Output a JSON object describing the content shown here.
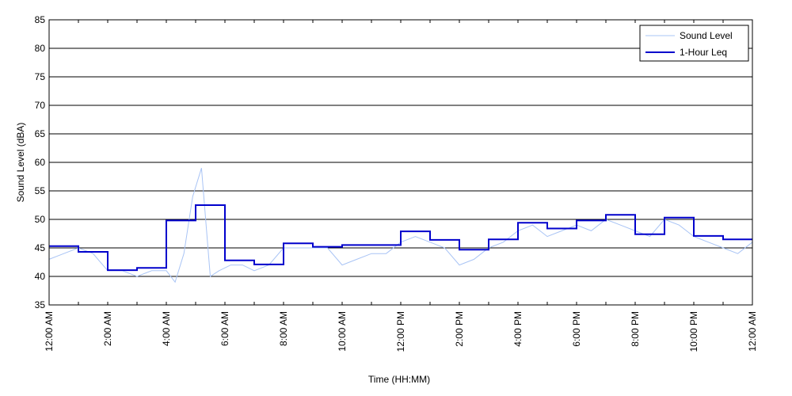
{
  "chart_data": {
    "type": "line",
    "xlabel": "Time (HH:MM)",
    "ylabel": "Sound Level (dBA)",
    "ylim": [
      35,
      85
    ],
    "y_ticks": [
      35,
      40,
      45,
      50,
      55,
      60,
      65,
      70,
      75,
      80,
      85
    ],
    "xlim_hours": [
      0,
      24
    ],
    "x_ticks": [
      {
        "hour": 0,
        "label": "12:00 AM"
      },
      {
        "hour": 2,
        "label": "2:00 AM"
      },
      {
        "hour": 4,
        "label": "4:00 AM"
      },
      {
        "hour": 6,
        "label": "6:00 AM"
      },
      {
        "hour": 8,
        "label": "8:00 AM"
      },
      {
        "hour": 10,
        "label": "10:00 AM"
      },
      {
        "hour": 12,
        "label": "12:00 PM"
      },
      {
        "hour": 14,
        "label": "2:00 PM"
      },
      {
        "hour": 16,
        "label": "4:00 PM"
      },
      {
        "hour": 18,
        "label": "6:00 PM"
      },
      {
        "hour": 20,
        "label": "8:00 PM"
      },
      {
        "hour": 22,
        "label": "10:00 PM"
      },
      {
        "hour": 24,
        "label": "12:00 AM"
      }
    ],
    "grid": "horizontal",
    "legend_position": "top-right",
    "series": [
      {
        "name": "Sound Level",
        "color": "#a9c4f5",
        "style": "thin-line",
        "x_hours": [
          0,
          0.5,
          1,
          1.5,
          2,
          2.5,
          3,
          3.5,
          4,
          4.3,
          4.6,
          4.9,
          5.2,
          5.5,
          5.8,
          6.2,
          6.6,
          7,
          7.5,
          8,
          8.5,
          9,
          9.5,
          10,
          10.5,
          11,
          11.5,
          12,
          12.5,
          13,
          13.5,
          14,
          14.5,
          15,
          15.5,
          16,
          16.5,
          17,
          17.5,
          18,
          18.5,
          19,
          19.5,
          20,
          20.5,
          21,
          21.5,
          22,
          22.5,
          23,
          23.5,
          24
        ],
        "values": [
          43,
          44,
          45,
          44,
          41,
          41,
          40,
          41,
          41,
          39,
          44,
          54,
          59,
          40,
          41,
          42,
          42,
          41,
          42,
          45,
          45,
          45,
          45,
          42,
          43,
          44,
          44,
          46,
          47,
          46,
          45,
          42,
          43,
          45,
          46,
          48,
          49,
          47,
          48,
          49,
          48,
          50,
          49,
          48,
          47,
          50,
          49,
          47,
          46,
          45,
          44,
          46
        ]
      },
      {
        "name": "1-Hour Leq",
        "color": "#0000cc",
        "style": "step",
        "values": [
          45.3,
          44.3,
          41.1,
          41.5,
          49.8,
          52.5,
          42.8,
          42.1,
          45.8,
          45.2,
          45.5,
          45.5,
          47.9,
          46.4,
          44.7,
          46.5,
          49.4,
          48.4,
          49.8,
          50.8,
          47.4,
          50.3,
          47.1,
          46.5
        ]
      }
    ]
  }
}
